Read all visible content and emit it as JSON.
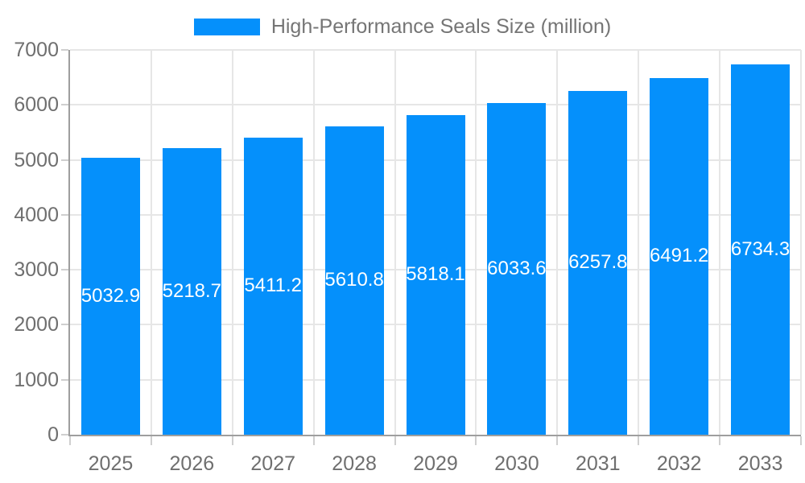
{
  "legend": {
    "label": "High-Performance Seals Size (million)"
  },
  "chart_data": {
    "type": "bar",
    "title": "High-Performance Seals Size (million)",
    "categories": [
      "2025",
      "2026",
      "2027",
      "2028",
      "2029",
      "2030",
      "2031",
      "2032",
      "2033"
    ],
    "values": [
      5032.9,
      5218.7,
      5411.2,
      5610.8,
      5818.1,
      6033.6,
      6257.8,
      6491.2,
      6734.3
    ],
    "series": [
      {
        "name": "High-Performance Seals Size (million)",
        "values": [
          5032.9,
          5218.7,
          5411.2,
          5610.8,
          5818.1,
          6033.6,
          6257.8,
          6491.2,
          6734.3
        ]
      }
    ],
    "xlabel": "",
    "ylabel": "",
    "ylim": [
      0,
      7000
    ],
    "yticks": [
      0,
      1000,
      2000,
      3000,
      4000,
      5000,
      6000,
      7000
    ],
    "grid": "on",
    "legend_position": "top-center",
    "bar_label_decimals": 1,
    "colors": {
      "bar": "#0590fb",
      "bar_value_label": "#ffffff",
      "gridline": "#e6e6e6",
      "tick": "#cfcfcf",
      "axis_line": "#9e9e9e",
      "axis_text": "#6f6f6f",
      "legend_text": "#757575",
      "background": "#ffffff"
    }
  }
}
